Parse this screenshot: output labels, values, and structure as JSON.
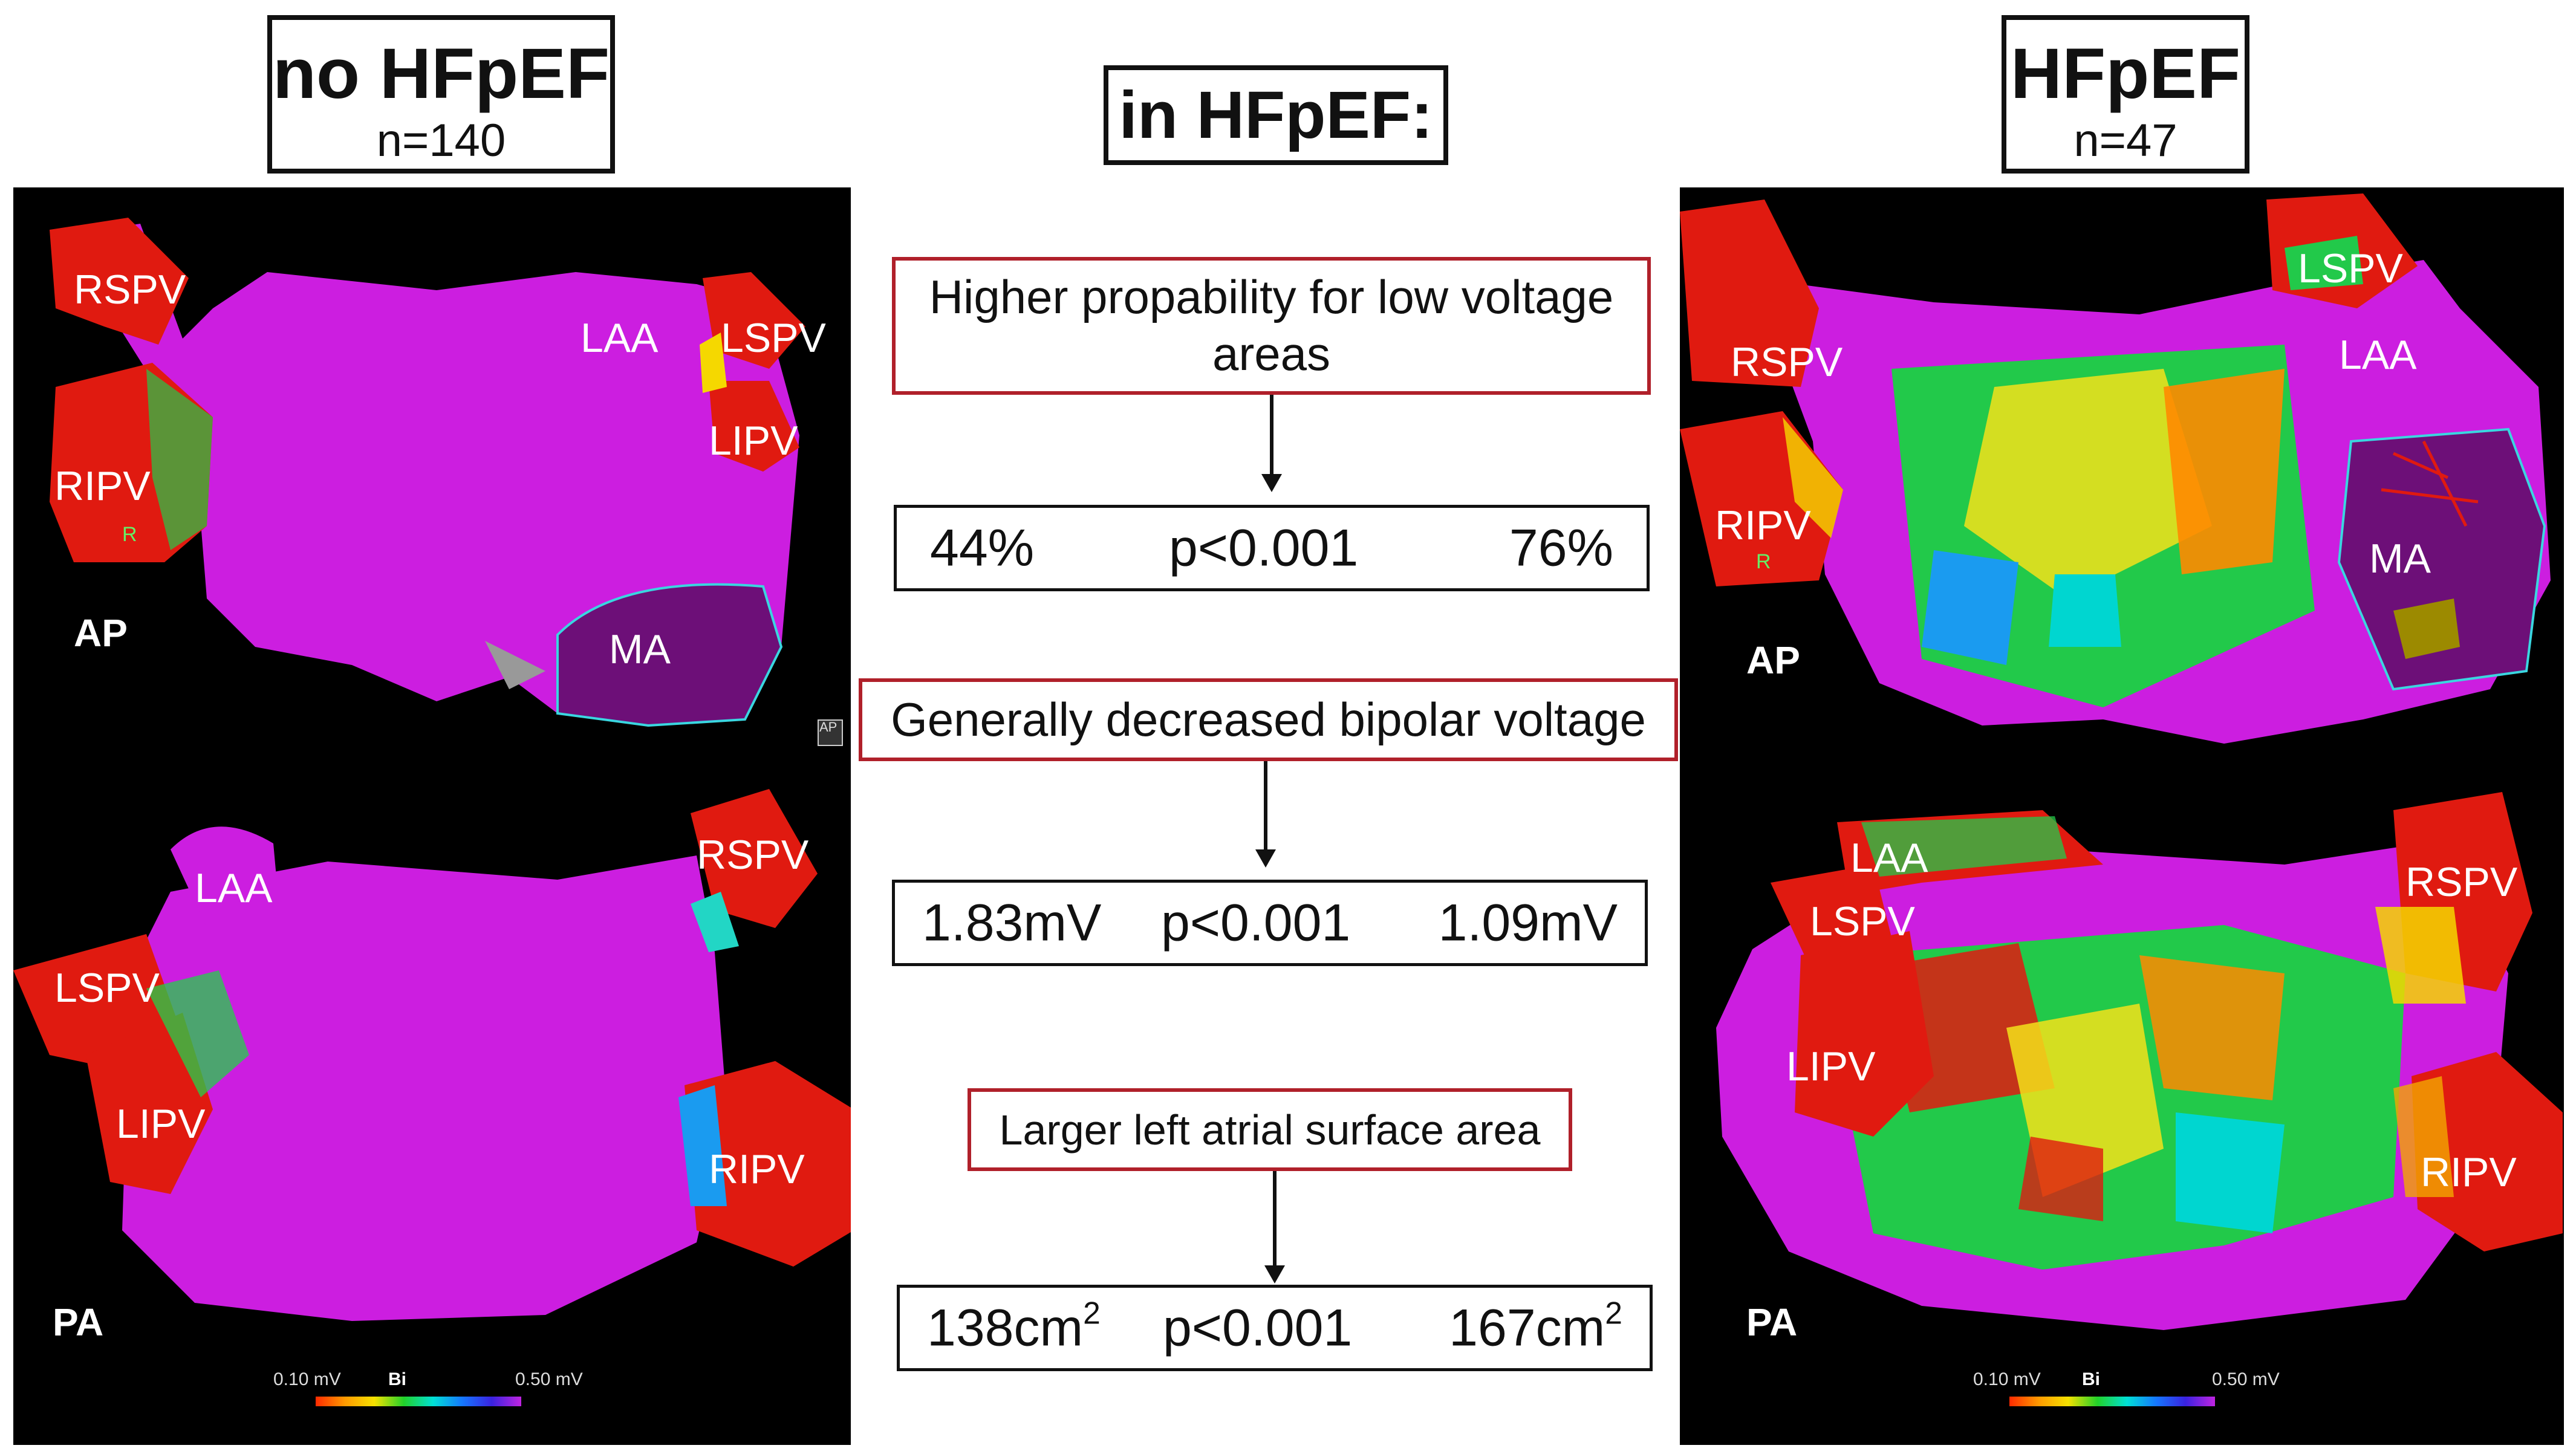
{
  "header": {
    "left_group": {
      "title": "no HFpEF",
      "n": "n=140"
    },
    "center_title": "in HFpEF:",
    "right_group": {
      "title": "HFpEF",
      "n": "n=47"
    }
  },
  "findings": [
    {
      "label": "Higher propability for low voltage areas",
      "left": "44%",
      "p": "p<0.001",
      "right": "76%"
    },
    {
      "label": "Generally decreased bipolar voltage",
      "left": "1.83mV",
      "p": "p<0.001",
      "right": "1.09mV"
    },
    {
      "label": "Larger left atrial surface area",
      "left_num": "138cm",
      "left_sup": "2",
      "p": "p<0.001",
      "right_num": "167cm",
      "right_sup": "2"
    }
  ],
  "maps": {
    "left_ap": {
      "view": "AP",
      "labels": [
        "RSPV",
        "LAA",
        "LSPV",
        "LIPV",
        "RIPV",
        "MA"
      ],
      "marker": "R",
      "corner": "AP"
    },
    "left_pa": {
      "view": "PA",
      "labels": [
        "LAA",
        "RSPV",
        "LSPV",
        "LIPV",
        "RIPV"
      ],
      "scale": {
        "min": "0.10 mV",
        "mode": "Bi",
        "max": "0.50 mV"
      }
    },
    "right_ap": {
      "view": "AP",
      "labels": [
        "LSPV",
        "RSPV",
        "LAA",
        "RIPV",
        "MA"
      ],
      "marker": "R"
    },
    "right_pa": {
      "view": "PA",
      "labels": [
        "LAA",
        "LSPV",
        "RSPV",
        "LIPV",
        "RIPV"
      ],
      "scale": {
        "min": "0.10 mV",
        "mode": "Bi",
        "max": "0.50 mV"
      }
    }
  },
  "colors": {
    "shell": "#cc1ee0",
    "vein": "#e01a10",
    "box_border_red": "#b0202a"
  }
}
